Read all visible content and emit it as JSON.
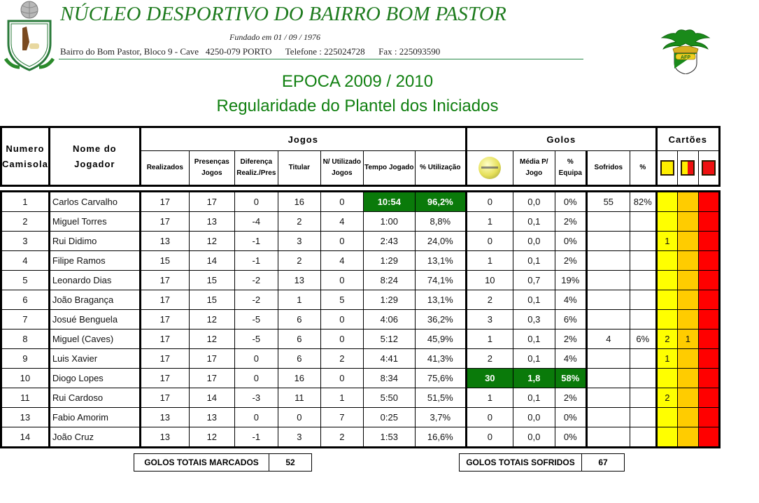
{
  "header": {
    "club_name": "NÚCLEO DESPORTIVO DO BAIRRO BOM PASTOR",
    "founded": "Fundado em 01 / 09 / 1976",
    "address": "Bairro do Bom Pastor, Bloco 9 - Cave   4250-079 PORTO",
    "phone": "Telefone : 225024728",
    "fax": "Fax : 225093590",
    "left_logo": "club-crest-icon",
    "right_logo": "afp-crest-icon",
    "right_logo_text": "AFP"
  },
  "titles": {
    "season": "EPOCA 2009 / 2010",
    "section": "Regularidade do Plantel dos Iniciados"
  },
  "table": {
    "group_headers": {
      "numero": [
        "Numero",
        "Camisola"
      ],
      "nome": [
        "Nome do",
        "Jogador"
      ],
      "jogos": "Jogos",
      "golos": "Golos",
      "cartoes": "Cartões"
    },
    "sub_headers": {
      "realizados": "Realizados",
      "presencas": [
        "Presenças",
        "Jogos"
      ],
      "diferenca": [
        "Diferença",
        "Realiz./Pres"
      ],
      "titular": "Titular",
      "nao_utilizado": [
        "N/ Utilizado",
        "Jogos"
      ],
      "tempo_jogado": "Tempo Jogado",
      "pct_utilizacao": "% Utilização",
      "golos_icon": "football-icon",
      "media": [
        "Média P/",
        "Jogo"
      ],
      "pct_equipa": [
        "%",
        "Equipa"
      ],
      "sofridos": "Sofridos",
      "pct_sofridos": "%",
      "card_yellow": "yellow-card-icon",
      "card_second_yellow": "yellow-red-card-icon",
      "card_red": "red-card-icon"
    },
    "colors": {
      "highlight_green": "#0a7a0a",
      "card_yellow": "#ffff00",
      "card_amber": "#ffcc00",
      "card_red": "#ff0000",
      "title_green": "#118011"
    },
    "rows": [
      {
        "num": "1",
        "name": "Carlos Carvalho",
        "realizados": "17",
        "presencas": "17",
        "diferenca": "0",
        "titular": "16",
        "nao_utilizado": "0",
        "tempo": "10:54",
        "pct_util": "96,2%",
        "golos": "0",
        "media": "0,0",
        "pct_equipa": "0%",
        "sofridos": "55",
        "pct_sofridos": "82%",
        "amarelos": "",
        "duplo": "",
        "vermelhos": ""
      },
      {
        "num": "2",
        "name": "Miguel Torres",
        "realizados": "17",
        "presencas": "13",
        "diferenca": "-4",
        "titular": "2",
        "nao_utilizado": "4",
        "tempo": "1:00",
        "pct_util": "8,8%",
        "golos": "1",
        "media": "0,1",
        "pct_equipa": "2%",
        "sofridos": "",
        "pct_sofridos": "",
        "amarelos": "",
        "duplo": "",
        "vermelhos": ""
      },
      {
        "num": "3",
        "name": "Rui Didimo",
        "realizados": "13",
        "presencas": "12",
        "diferenca": "-1",
        "titular": "3",
        "nao_utilizado": "0",
        "tempo": "2:43",
        "pct_util": "24,0%",
        "golos": "0",
        "media": "0,0",
        "pct_equipa": "0%",
        "sofridos": "",
        "pct_sofridos": "",
        "amarelos": "1",
        "duplo": "",
        "vermelhos": ""
      },
      {
        "num": "4",
        "name": "Filipe Ramos",
        "realizados": "15",
        "presencas": "14",
        "diferenca": "-1",
        "titular": "2",
        "nao_utilizado": "4",
        "tempo": "1:29",
        "pct_util": "13,1%",
        "golos": "1",
        "media": "0,1",
        "pct_equipa": "2%",
        "sofridos": "",
        "pct_sofridos": "",
        "amarelos": "",
        "duplo": "",
        "vermelhos": ""
      },
      {
        "num": "5",
        "name": "Leonardo Dias",
        "realizados": "17",
        "presencas": "15",
        "diferenca": "-2",
        "titular": "13",
        "nao_utilizado": "0",
        "tempo": "8:24",
        "pct_util": "74,1%",
        "golos": "10",
        "media": "0,7",
        "pct_equipa": "19%",
        "sofridos": "",
        "pct_sofridos": "",
        "amarelos": "",
        "duplo": "",
        "vermelhos": ""
      },
      {
        "num": "6",
        "name": "João Bragança",
        "realizados": "17",
        "presencas": "15",
        "diferenca": "-2",
        "titular": "1",
        "nao_utilizado": "5",
        "tempo": "1:29",
        "pct_util": "13,1%",
        "golos": "2",
        "media": "0,1",
        "pct_equipa": "4%",
        "sofridos": "",
        "pct_sofridos": "",
        "amarelos": "",
        "duplo": "",
        "vermelhos": ""
      },
      {
        "num": "7",
        "name": "Josué Benguela",
        "realizados": "17",
        "presencas": "12",
        "diferenca": "-5",
        "titular": "6",
        "nao_utilizado": "0",
        "tempo": "4:06",
        "pct_util": "36,2%",
        "golos": "3",
        "media": "0,3",
        "pct_equipa": "6%",
        "sofridos": "",
        "pct_sofridos": "",
        "amarelos": "",
        "duplo": "",
        "vermelhos": ""
      },
      {
        "num": "8",
        "name": "Miguel (Caves)",
        "realizados": "17",
        "presencas": "12",
        "diferenca": "-5",
        "titular": "6",
        "nao_utilizado": "0",
        "tempo": "5:12",
        "pct_util": "45,9%",
        "golos": "1",
        "media": "0,1",
        "pct_equipa": "2%",
        "sofridos": "4",
        "pct_sofridos": "6%",
        "amarelos": "2",
        "duplo": "1",
        "vermelhos": ""
      },
      {
        "num": "9",
        "name": "Luis Xavier",
        "realizados": "17",
        "presencas": "17",
        "diferenca": "0",
        "titular": "6",
        "nao_utilizado": "2",
        "tempo": "4:41",
        "pct_util": "41,3%",
        "golos": "2",
        "media": "0,1",
        "pct_equipa": "4%",
        "sofridos": "",
        "pct_sofridos": "",
        "amarelos": "1",
        "duplo": "",
        "vermelhos": ""
      },
      {
        "num": "10",
        "name": "Diogo Lopes",
        "realizados": "17",
        "presencas": "17",
        "diferenca": "0",
        "titular": "16",
        "nao_utilizado": "0",
        "tempo": "8:34",
        "pct_util": "75,6%",
        "golos": "30",
        "media": "1,8",
        "pct_equipa": "58%",
        "sofridos": "",
        "pct_sofridos": "",
        "amarelos": "",
        "duplo": "",
        "vermelhos": ""
      },
      {
        "num": "11",
        "name": "Rui Cardoso",
        "realizados": "17",
        "presencas": "14",
        "diferenca": "-3",
        "titular": "11",
        "nao_utilizado": "1",
        "tempo": "5:50",
        "pct_util": "51,5%",
        "golos": "1",
        "media": "0,1",
        "pct_equipa": "2%",
        "sofridos": "",
        "pct_sofridos": "",
        "amarelos": "2",
        "duplo": "",
        "vermelhos": ""
      },
      {
        "num": "13",
        "name": "Fabio Amorim",
        "realizados": "13",
        "presencas": "13",
        "diferenca": "0",
        "titular": "0",
        "nao_utilizado": "7",
        "tempo": "0:25",
        "pct_util": "3,7%",
        "golos": "0",
        "media": "0,0",
        "pct_equipa": "0%",
        "sofridos": "",
        "pct_sofridos": "",
        "amarelos": "",
        "duplo": "",
        "vermelhos": ""
      },
      {
        "num": "14",
        "name": "João Cruz",
        "realizados": "13",
        "presencas": "12",
        "diferenca": "-1",
        "titular": "3",
        "nao_utilizado": "2",
        "tempo": "1:53",
        "pct_util": "16,6%",
        "golos": "0",
        "media": "0,0",
        "pct_equipa": "0%",
        "sofridos": "",
        "pct_sofridos": "",
        "amarelos": "",
        "duplo": "",
        "vermelhos": ""
      }
    ]
  },
  "totals": {
    "scored_label": "GOLOS TOTAIS MARCADOS",
    "scored_value": "52",
    "conceded_label": "GOLOS TOTAIS SOFRIDOS",
    "conceded_value": "67"
  }
}
